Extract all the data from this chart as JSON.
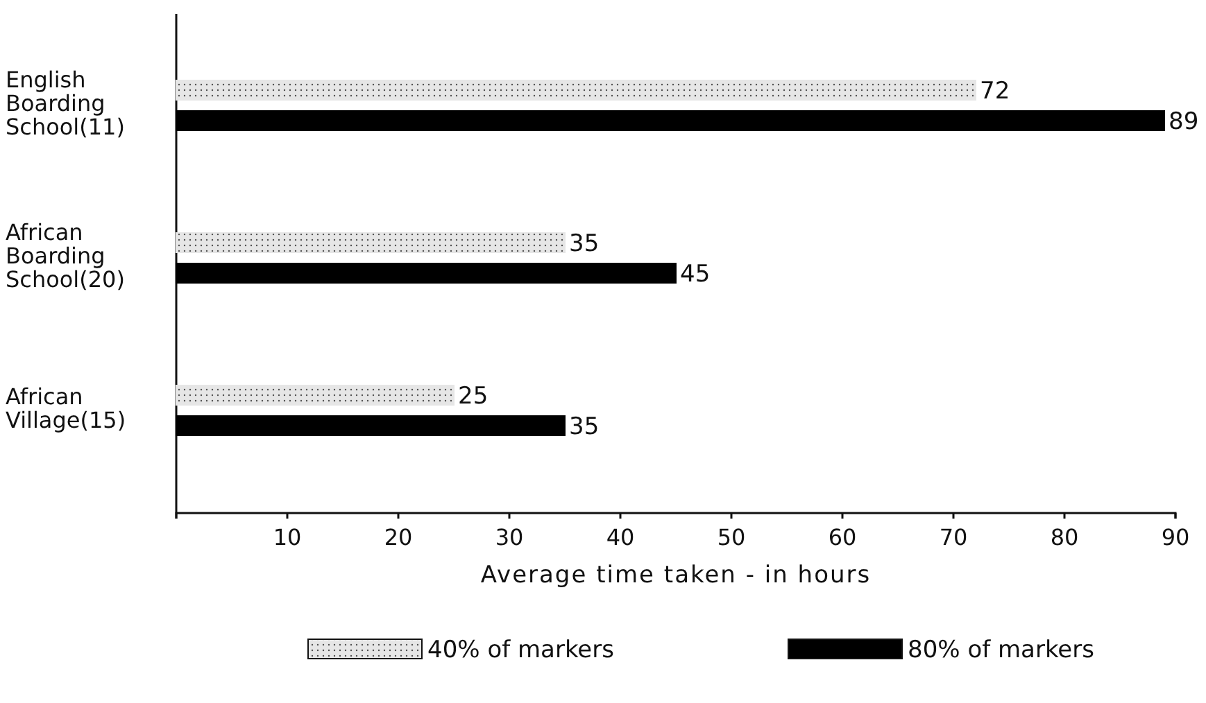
{
  "chart_data": {
    "type": "bar",
    "orientation": "horizontal",
    "xlabel": "Average time taken - in hours",
    "categories": [
      "English Boarding School(11)",
      "African Boarding School(20)",
      "African Village(15)"
    ],
    "series": [
      {
        "name": "40% of markers",
        "color": "#e6e6e6",
        "values": [
          72,
          35,
          25
        ]
      },
      {
        "name": "80% of markers",
        "color": "#000000",
        "values": [
          89,
          45,
          35
        ]
      }
    ],
    "xlim": [
      0,
      90
    ],
    "xticks": [
      {
        "value": 0,
        "label": null
      },
      10,
      20,
      30,
      40,
      50,
      60,
      70,
      80,
      90
    ],
    "data_labels": true,
    "legend": "bottom",
    "grid": false
  }
}
